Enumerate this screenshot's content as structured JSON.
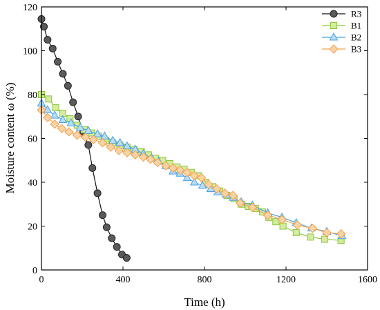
{
  "chart_data": {
    "type": "line",
    "xlabel": "Time (h)",
    "ylabel": "Moisture content ω (%)",
    "xlim": [
      0,
      1600
    ],
    "ylim": [
      0,
      120
    ],
    "xticks": [
      0,
      400,
      800,
      1200,
      1600
    ],
    "yticks": [
      0,
      20,
      40,
      60,
      80,
      100,
      120
    ],
    "grid": false,
    "legend": "top-right",
    "series": [
      {
        "name": "R3",
        "marker": "circle",
        "color": "#555555",
        "fill": "#5a5a5a",
        "points": [
          [
            0,
            114.5
          ],
          [
            12,
            111
          ],
          [
            30,
            105
          ],
          [
            55,
            101
          ],
          [
            80,
            95
          ],
          [
            105,
            89.5
          ],
          [
            130,
            84
          ],
          [
            155,
            76.5
          ],
          [
            180,
            70
          ],
          [
            205,
            63
          ],
          [
            230,
            57
          ],
          [
            250,
            46.5
          ],
          [
            275,
            35
          ],
          [
            300,
            25
          ],
          [
            320,
            19.5
          ],
          [
            345,
            14.5
          ],
          [
            370,
            10.5
          ],
          [
            395,
            7
          ],
          [
            418,
            5.5
          ]
        ]
      },
      {
        "name": "B1",
        "marker": "square",
        "color": "#8cc63f",
        "fill": "#d4ec9c",
        "points": [
          [
            0,
            80
          ],
          [
            35,
            78
          ],
          [
            70,
            74
          ],
          [
            105,
            71.5
          ],
          [
            140,
            69
          ],
          [
            175,
            66
          ],
          [
            210,
            64
          ],
          [
            245,
            62.5
          ],
          [
            280,
            61
          ],
          [
            315,
            59
          ],
          [
            350,
            58
          ],
          [
            385,
            57
          ],
          [
            420,
            56
          ],
          [
            455,
            55
          ],
          [
            490,
            54
          ],
          [
            525,
            52.5
          ],
          [
            560,
            51
          ],
          [
            595,
            50
          ],
          [
            630,
            48.5
          ],
          [
            665,
            47
          ],
          [
            700,
            46
          ],
          [
            735,
            44.5
          ],
          [
            770,
            43
          ],
          [
            805,
            40
          ],
          [
            840,
            38
          ],
          [
            875,
            36
          ],
          [
            910,
            34
          ],
          [
            945,
            32.5
          ],
          [
            980,
            30
          ],
          [
            1015,
            29
          ],
          [
            1050,
            28
          ],
          [
            1085,
            26.5
          ],
          [
            1115,
            24
          ],
          [
            1150,
            22
          ],
          [
            1185,
            20
          ],
          [
            1250,
            17
          ],
          [
            1320,
            15
          ],
          [
            1390,
            14
          ],
          [
            1470,
            13.5
          ]
        ]
      },
      {
        "name": "B2",
        "marker": "triangle",
        "color": "#4aa3df",
        "fill": "#b9dcf4",
        "points": [
          [
            0,
            76
          ],
          [
            30,
            73
          ],
          [
            65,
            70.5
          ],
          [
            105,
            68.5
          ],
          [
            145,
            67
          ],
          [
            190,
            65
          ],
          [
            230,
            63.5
          ],
          [
            275,
            62
          ],
          [
            310,
            61
          ],
          [
            350,
            59
          ],
          [
            385,
            58
          ],
          [
            420,
            56.5
          ],
          [
            460,
            55
          ],
          [
            500,
            53
          ],
          [
            540,
            51
          ],
          [
            575,
            49.5
          ],
          [
            610,
            47.5
          ],
          [
            645,
            45
          ],
          [
            680,
            44
          ],
          [
            715,
            42
          ],
          [
            750,
            40
          ],
          [
            790,
            38.5
          ],
          [
            830,
            37
          ],
          [
            865,
            35.5
          ],
          [
            905,
            34.5
          ],
          [
            940,
            33
          ],
          [
            980,
            31
          ],
          [
            1035,
            29.5
          ],
          [
            1110,
            26
          ],
          [
            1180,
            24
          ],
          [
            1250,
            21.5
          ],
          [
            1325,
            19
          ],
          [
            1400,
            17.5
          ],
          [
            1475,
            15.5
          ]
        ]
      },
      {
        "name": "B3",
        "marker": "diamond",
        "color": "#f0a24d",
        "fill": "#fad3a5",
        "points": [
          [
            0,
            73
          ],
          [
            30,
            69.5
          ],
          [
            65,
            66.5
          ],
          [
            100,
            64.5
          ],
          [
            135,
            63
          ],
          [
            175,
            61.5
          ],
          [
            215,
            60.5
          ],
          [
            255,
            59.5
          ],
          [
            300,
            58
          ],
          [
            340,
            56
          ],
          [
            380,
            54.5
          ],
          [
            420,
            53.5
          ],
          [
            460,
            52.5
          ],
          [
            500,
            51.5
          ],
          [
            535,
            50.5
          ],
          [
            570,
            49
          ],
          [
            610,
            47.5
          ],
          [
            645,
            46.5
          ],
          [
            680,
            45.5
          ],
          [
            715,
            44.5
          ],
          [
            750,
            43
          ],
          [
            785,
            42
          ],
          [
            820,
            39
          ],
          [
            860,
            37
          ],
          [
            900,
            35
          ],
          [
            940,
            34
          ],
          [
            975,
            30.5
          ],
          [
            1035,
            28.5
          ],
          [
            1110,
            25
          ],
          [
            1180,
            23
          ],
          [
            1255,
            20.5
          ],
          [
            1330,
            19
          ],
          [
            1400,
            17
          ],
          [
            1470,
            16.5
          ]
        ]
      }
    ]
  }
}
